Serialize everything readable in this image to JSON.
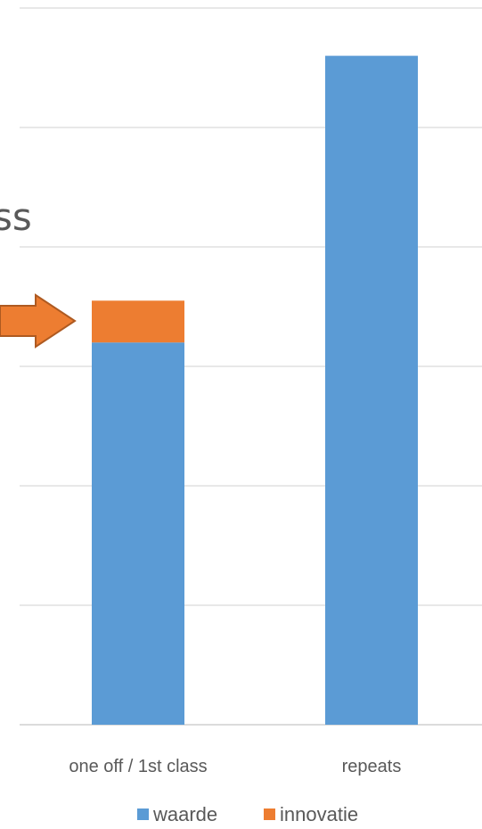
{
  "chart_data": {
    "type": "bar",
    "stacked": true,
    "categories": [
      "one off / 1st class",
      "repeats"
    ],
    "series": [
      {
        "name": "waarde",
        "values": [
          3.2,
          5.6
        ],
        "color": "#5b9bd5"
      },
      {
        "name": "innovatie",
        "values": [
          0.35,
          0
        ],
        "color": "#ed7d31"
      }
    ],
    "ylim": [
      0,
      6
    ],
    "grid": true,
    "legend": "bottom",
    "annotations": {
      "cropped_title_fragment": "ss",
      "arrow_color": "#ed7d31",
      "arrow_points_to": "innovatie"
    }
  }
}
